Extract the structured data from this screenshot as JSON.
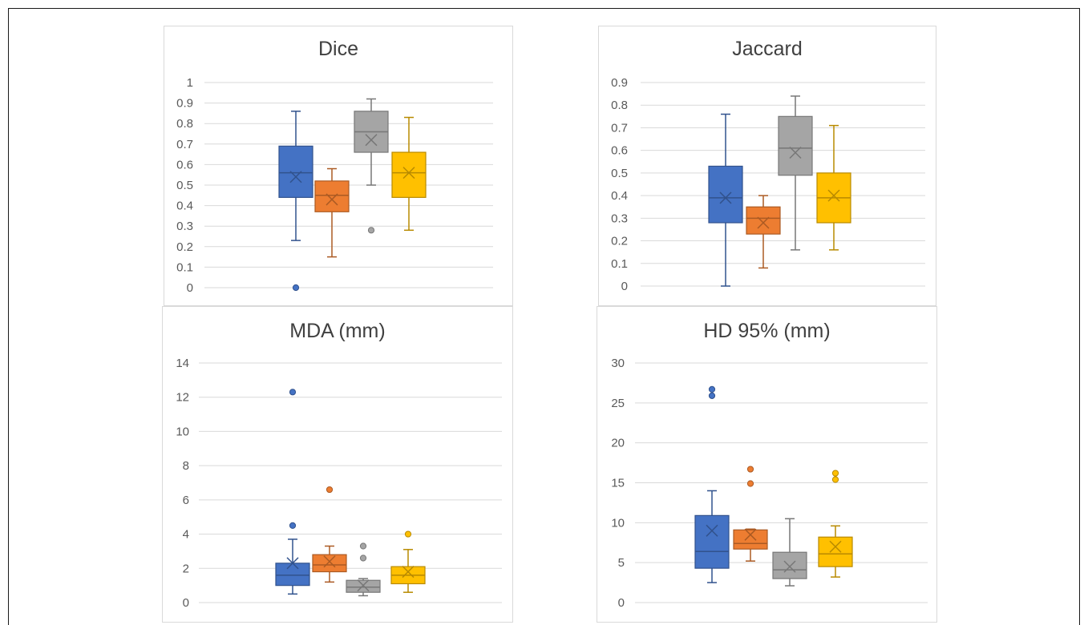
{
  "chart_data": [
    {
      "type": "box",
      "title": "Dice",
      "ylim": [
        0,
        1
      ],
      "yticks": [
        "0",
        "0.1",
        "0.2",
        "0.3",
        "0.4",
        "0.5",
        "0.6",
        "0.7",
        "0.8",
        "0.9",
        "1"
      ],
      "grid": true,
      "series": [
        {
          "color": "#4472C4",
          "min": 0.23,
          "q1": 0.44,
          "median": 0.56,
          "q3": 0.69,
          "max": 0.86,
          "mean": 0.54,
          "outliers": [
            0.0
          ]
        },
        {
          "color": "#ED7D31",
          "min": 0.15,
          "q1": 0.37,
          "median": 0.45,
          "q3": 0.52,
          "max": 0.58,
          "mean": 0.43,
          "outliers": []
        },
        {
          "color": "#A5A5A5",
          "min": 0.5,
          "q1": 0.66,
          "median": 0.76,
          "q3": 0.86,
          "max": 0.92,
          "mean": 0.72,
          "outliers": [
            0.28
          ]
        },
        {
          "color": "#FFC000",
          "min": 0.28,
          "q1": 0.44,
          "median": 0.56,
          "q3": 0.66,
          "max": 0.83,
          "mean": 0.56,
          "outliers": []
        }
      ]
    },
    {
      "type": "box",
      "title": "Jaccard",
      "ylim": [
        0,
        0.9
      ],
      "yticks": [
        "0",
        "0.1",
        "0.2",
        "0.3",
        "0.4",
        "0.5",
        "0.6",
        "0.7",
        "0.8",
        "0.9"
      ],
      "grid": true,
      "series": [
        {
          "color": "#4472C4",
          "min": 0.0,
          "q1": 0.28,
          "median": 0.39,
          "q3": 0.53,
          "max": 0.76,
          "mean": 0.39,
          "outliers": []
        },
        {
          "color": "#ED7D31",
          "min": 0.08,
          "q1": 0.23,
          "median": 0.3,
          "q3": 0.35,
          "max": 0.4,
          "mean": 0.28,
          "outliers": []
        },
        {
          "color": "#A5A5A5",
          "min": 0.16,
          "q1": 0.49,
          "median": 0.61,
          "q3": 0.75,
          "max": 0.84,
          "mean": 0.59,
          "outliers": []
        },
        {
          "color": "#FFC000",
          "min": 0.16,
          "q1": 0.28,
          "median": 0.39,
          "q3": 0.5,
          "max": 0.71,
          "mean": 0.4,
          "outliers": []
        }
      ]
    },
    {
      "type": "box",
      "title": "MDA (mm)",
      "ylim": [
        0,
        14
      ],
      "yticks": [
        "0",
        "2",
        "4",
        "6",
        "8",
        "10",
        "12",
        "14"
      ],
      "grid": true,
      "series": [
        {
          "color": "#4472C4",
          "min": 0.5,
          "q1": 1.0,
          "median": 1.6,
          "q3": 2.3,
          "max": 3.7,
          "mean": 2.3,
          "outliers": [
            4.5,
            12.3
          ]
        },
        {
          "color": "#ED7D31",
          "min": 1.2,
          "q1": 1.8,
          "median": 2.2,
          "q3": 2.8,
          "max": 3.3,
          "mean": 2.4,
          "outliers": [
            6.6
          ]
        },
        {
          "color": "#A5A5A5",
          "min": 0.4,
          "q1": 0.6,
          "median": 0.9,
          "q3": 1.3,
          "max": 1.4,
          "mean": 1.0,
          "outliers": [
            2.6,
            3.3
          ]
        },
        {
          "color": "#FFC000",
          "min": 0.6,
          "q1": 1.1,
          "median": 1.6,
          "q3": 2.1,
          "max": 3.1,
          "mean": 1.8,
          "outliers": [
            4.0
          ]
        }
      ]
    },
    {
      "type": "box",
      "title": "HD 95% (mm)",
      "ylim": [
        0,
        30
      ],
      "yticks": [
        "0",
        "5",
        "10",
        "15",
        "20",
        "25",
        "30"
      ],
      "grid": true,
      "series": [
        {
          "color": "#4472C4",
          "min": 2.5,
          "q1": 4.3,
          "median": 6.4,
          "q3": 10.9,
          "max": 14.0,
          "mean": 9.0,
          "outliers": [
            25.9,
            26.7
          ]
        },
        {
          "color": "#ED7D31",
          "min": 5.2,
          "q1": 6.7,
          "median": 7.4,
          "q3": 9.1,
          "max": 9.2,
          "mean": 8.5,
          "outliers": [
            14.9,
            16.7
          ]
        },
        {
          "color": "#A5A5A5",
          "min": 2.1,
          "q1": 3.0,
          "median": 4.1,
          "q3": 6.3,
          "max": 10.5,
          "mean": 4.5,
          "outliers": []
        },
        {
          "color": "#FFC000",
          "min": 3.2,
          "q1": 4.5,
          "median": 6.1,
          "q3": 8.2,
          "max": 9.6,
          "mean": 7.0,
          "outliers": [
            15.4,
            16.2
          ]
        }
      ]
    }
  ]
}
